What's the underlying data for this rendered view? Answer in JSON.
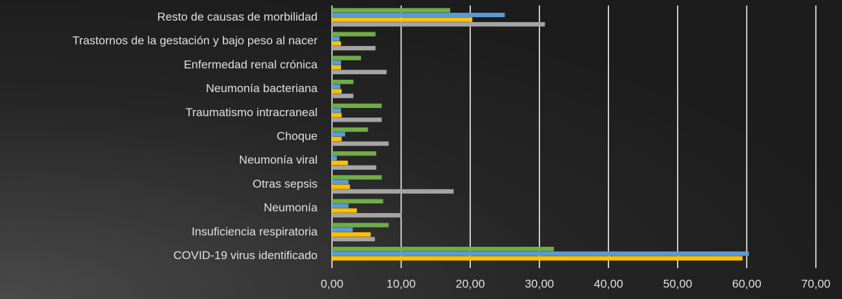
{
  "chart_data": {
    "type": "barh",
    "categories": [
      "Resto de causas de morbilidad",
      "Trastornos de la gestación y bajo peso al nacer",
      "Enfermedad renal crónica",
      "Neumonía bacteriana",
      "Traumatismo intracraneal",
      "Choque",
      "Neumonía viral",
      "Otras sepsis",
      "Neumonía",
      "Insuficiencia respiratoria",
      "COVID-19 virus identificado"
    ],
    "series": [
      {
        "color": "#70ad47",
        "values": [
          17.1,
          6.3,
          4.2,
          3.1,
          7.2,
          5.2,
          6.4,
          7.2,
          7.4,
          8.2,
          32.1
        ]
      },
      {
        "color": "#5b9bd5",
        "values": [
          25.0,
          1.1,
          1.3,
          1.2,
          1.3,
          1.9,
          0.7,
          2.4,
          2.4,
          3.0,
          60.3
        ]
      },
      {
        "color": "#ffc000",
        "values": [
          20.3,
          1.3,
          1.3,
          1.4,
          1.4,
          1.4,
          2.3,
          2.6,
          3.6,
          5.6,
          59.4
        ]
      },
      {
        "color": "#a5a5a5",
        "values": [
          30.8,
          6.3,
          7.9,
          3.1,
          7.2,
          8.2,
          6.4,
          17.6,
          10.1,
          6.2,
          null
        ]
      }
    ],
    "xlim": [
      0,
      70
    ],
    "xticks": [
      {
        "value": 0,
        "label": "0,00"
      },
      {
        "value": 10,
        "label": "10,00"
      },
      {
        "value": 20,
        "label": "20,00"
      },
      {
        "value": 30,
        "label": "30,00"
      },
      {
        "value": 40,
        "label": "40,00"
      },
      {
        "value": 50,
        "label": "50,00"
      },
      {
        "value": 60,
        "label": "60,00"
      },
      {
        "value": 70,
        "label": "70,00"
      }
    ],
    "grid": true
  }
}
